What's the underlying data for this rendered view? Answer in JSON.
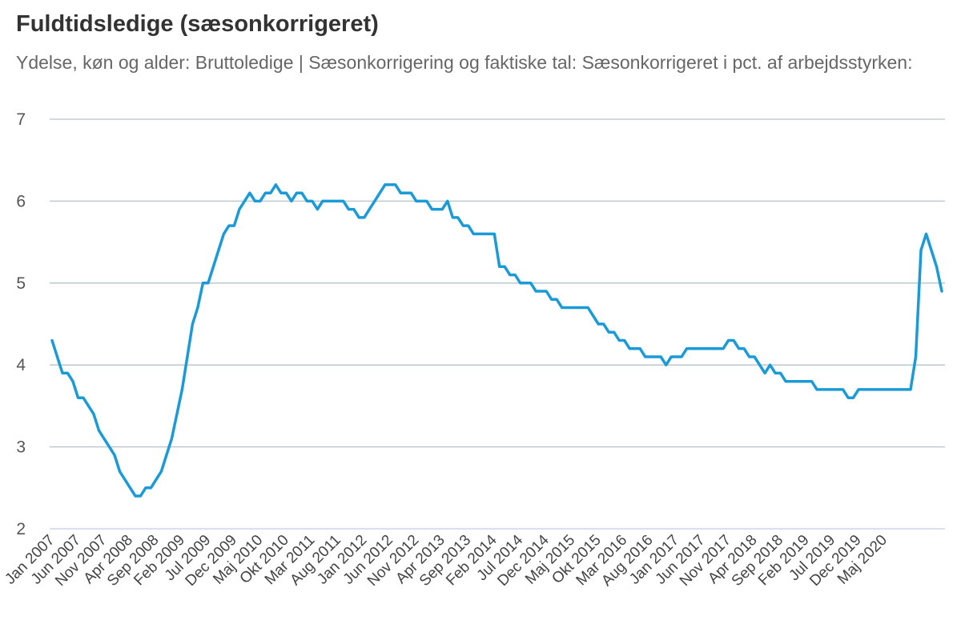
{
  "header": {
    "title": "Fuldtidsledige (sæsonkorrigeret)",
    "subtitle": "Ydelse, køn og alder: Bruttoledige | Sæsonkorrigering og faktiske tal: Sæsonkorrigeret i pct. af arbejdsstyrken:"
  },
  "chart_data": {
    "type": "line",
    "title": "Fuldtidsledige (sæsonkorrigeret)",
    "subtitle": "Ydelse, køn og alder: Bruttoledige | Sæsonkorrigering og faktiske tal: Sæsonkorrigeret i pct. af arbejdsstyrken:",
    "ylim": [
      2,
      7
    ],
    "yticks": [
      2,
      3,
      4,
      5,
      6,
      7
    ],
    "grid": true,
    "line_color": "#1a9ad6",
    "x_start": "2007-01",
    "x_tick_labels": [
      "Jan 2007",
      "Jun 2007",
      "Nov 2007",
      "Apr 2008",
      "Sep 2008",
      "Feb 2009",
      "Jul 2009",
      "Dec 2009",
      "Maj 2010",
      "Okt 2010",
      "Mar 2011",
      "Aug 2011",
      "Jan 2012",
      "Jun 2012",
      "Nov 2012",
      "Apr 2013",
      "Sep 2013",
      "Feb 2014",
      "Jul 2014",
      "Dec 2014",
      "Maj 2015",
      "Okt 2015",
      "Mar 2016",
      "Aug 2016",
      "Jan 2017",
      "Jun 2017",
      "Nov 2017",
      "Apr 2018",
      "Sep 2018",
      "Feb 2019",
      "Jul 2019",
      "Dec 2019",
      "Maj 2020"
    ],
    "values": [
      4.3,
      4.1,
      3.9,
      3.9,
      3.8,
      3.6,
      3.6,
      3.5,
      3.4,
      3.2,
      3.1,
      3.0,
      2.9,
      2.7,
      2.6,
      2.5,
      2.4,
      2.4,
      2.5,
      2.5,
      2.6,
      2.7,
      2.9,
      3.1,
      3.4,
      3.7,
      4.1,
      4.5,
      4.7,
      5.0,
      5.0,
      5.2,
      5.4,
      5.6,
      5.7,
      5.7,
      5.9,
      6.0,
      6.1,
      6.0,
      6.0,
      6.1,
      6.1,
      6.2,
      6.1,
      6.1,
      6.0,
      6.1,
      6.1,
      6.0,
      6.0,
      5.9,
      6.0,
      6.0,
      6.0,
      6.0,
      6.0,
      5.9,
      5.9,
      5.8,
      5.8,
      5.9,
      6.0,
      6.1,
      6.2,
      6.2,
      6.2,
      6.1,
      6.1,
      6.1,
      6.0,
      6.0,
      6.0,
      5.9,
      5.9,
      5.9,
      6.0,
      5.8,
      5.8,
      5.7,
      5.7,
      5.6,
      5.6,
      5.6,
      5.6,
      5.6,
      5.2,
      5.2,
      5.1,
      5.1,
      5.0,
      5.0,
      5.0,
      4.9,
      4.9,
      4.9,
      4.8,
      4.8,
      4.7,
      4.7,
      4.7,
      4.7,
      4.7,
      4.7,
      4.6,
      4.5,
      4.5,
      4.4,
      4.4,
      4.3,
      4.3,
      4.2,
      4.2,
      4.2,
      4.1,
      4.1,
      4.1,
      4.1,
      4.0,
      4.1,
      4.1,
      4.1,
      4.2,
      4.2,
      4.2,
      4.2,
      4.2,
      4.2,
      4.2,
      4.2,
      4.3,
      4.3,
      4.2,
      4.2,
      4.1,
      4.1,
      4.0,
      3.9,
      4.0,
      3.9,
      3.9,
      3.8,
      3.8,
      3.8,
      3.8,
      3.8,
      3.8,
      3.7,
      3.7,
      3.7,
      3.7,
      3.7,
      3.7,
      3.6,
      3.6,
      3.7,
      3.7,
      3.7,
      3.7,
      3.7,
      3.7,
      3.7,
      3.7,
      3.7,
      3.7,
      3.7,
      4.1,
      5.4,
      5.6,
      5.4,
      5.2,
      4.9
    ]
  }
}
